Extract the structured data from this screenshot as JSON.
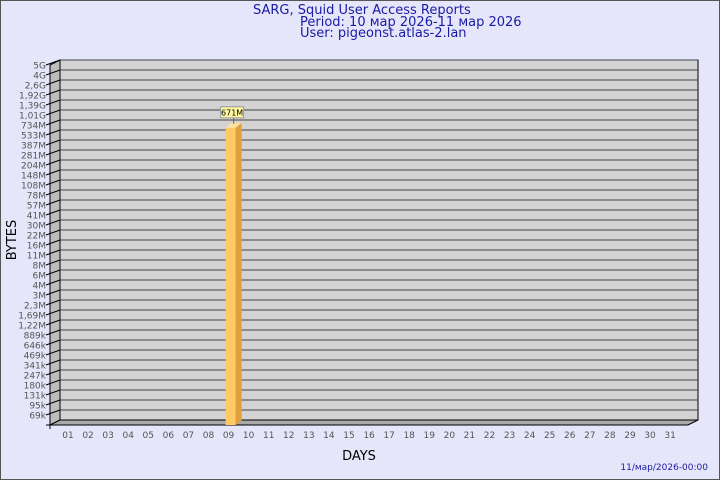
{
  "header": {
    "title": "SARG, Squid User Access Reports",
    "period": "Period: 10 мар 2026-11 мар 2026",
    "user": "User: pigeonst.atlas-2.lan"
  },
  "footer": {
    "timestamp": "11/мар/2026-00:00"
  },
  "colors": {
    "background": "#e6e6fa",
    "plot": "#d3d3d3",
    "bar_front": "#ffc966",
    "bar_side": "#e0a040",
    "title": "#1a1aa6"
  },
  "chart_data": {
    "type": "bar",
    "xlabel": "DAYS",
    "ylabel": "BYTES",
    "y_scale": "log",
    "grid": true,
    "ytick_labels": [
      "5G",
      "4G",
      "2,6G",
      "1,92G",
      "1,39G",
      "1,01G",
      "734M",
      "533M",
      "387M",
      "281M",
      "204M",
      "148M",
      "108M",
      "78M",
      "57M",
      "41M",
      "30M",
      "22M",
      "16M",
      "11M",
      "8M",
      "6M",
      "4M",
      "3M",
      "2,3M",
      "1,69M",
      "1,22M",
      "889k",
      "646k",
      "469k",
      "341k",
      "247k",
      "180k",
      "131k",
      "95k",
      "69k"
    ],
    "categories": [
      "01",
      "02",
      "03",
      "04",
      "05",
      "06",
      "07",
      "08",
      "09",
      "10",
      "11",
      "12",
      "13",
      "14",
      "15",
      "16",
      "17",
      "18",
      "19",
      "20",
      "21",
      "22",
      "23",
      "24",
      "25",
      "26",
      "27",
      "28",
      "29",
      "30",
      "31"
    ],
    "values": [
      null,
      null,
      null,
      null,
      null,
      null,
      null,
      null,
      null,
      671000000,
      null,
      null,
      null,
      null,
      null,
      null,
      null,
      null,
      null,
      null,
      null,
      null,
      null,
      null,
      null,
      null,
      null,
      null,
      null,
      null,
      null
    ],
    "data_labels": {
      "10": "671M"
    }
  }
}
